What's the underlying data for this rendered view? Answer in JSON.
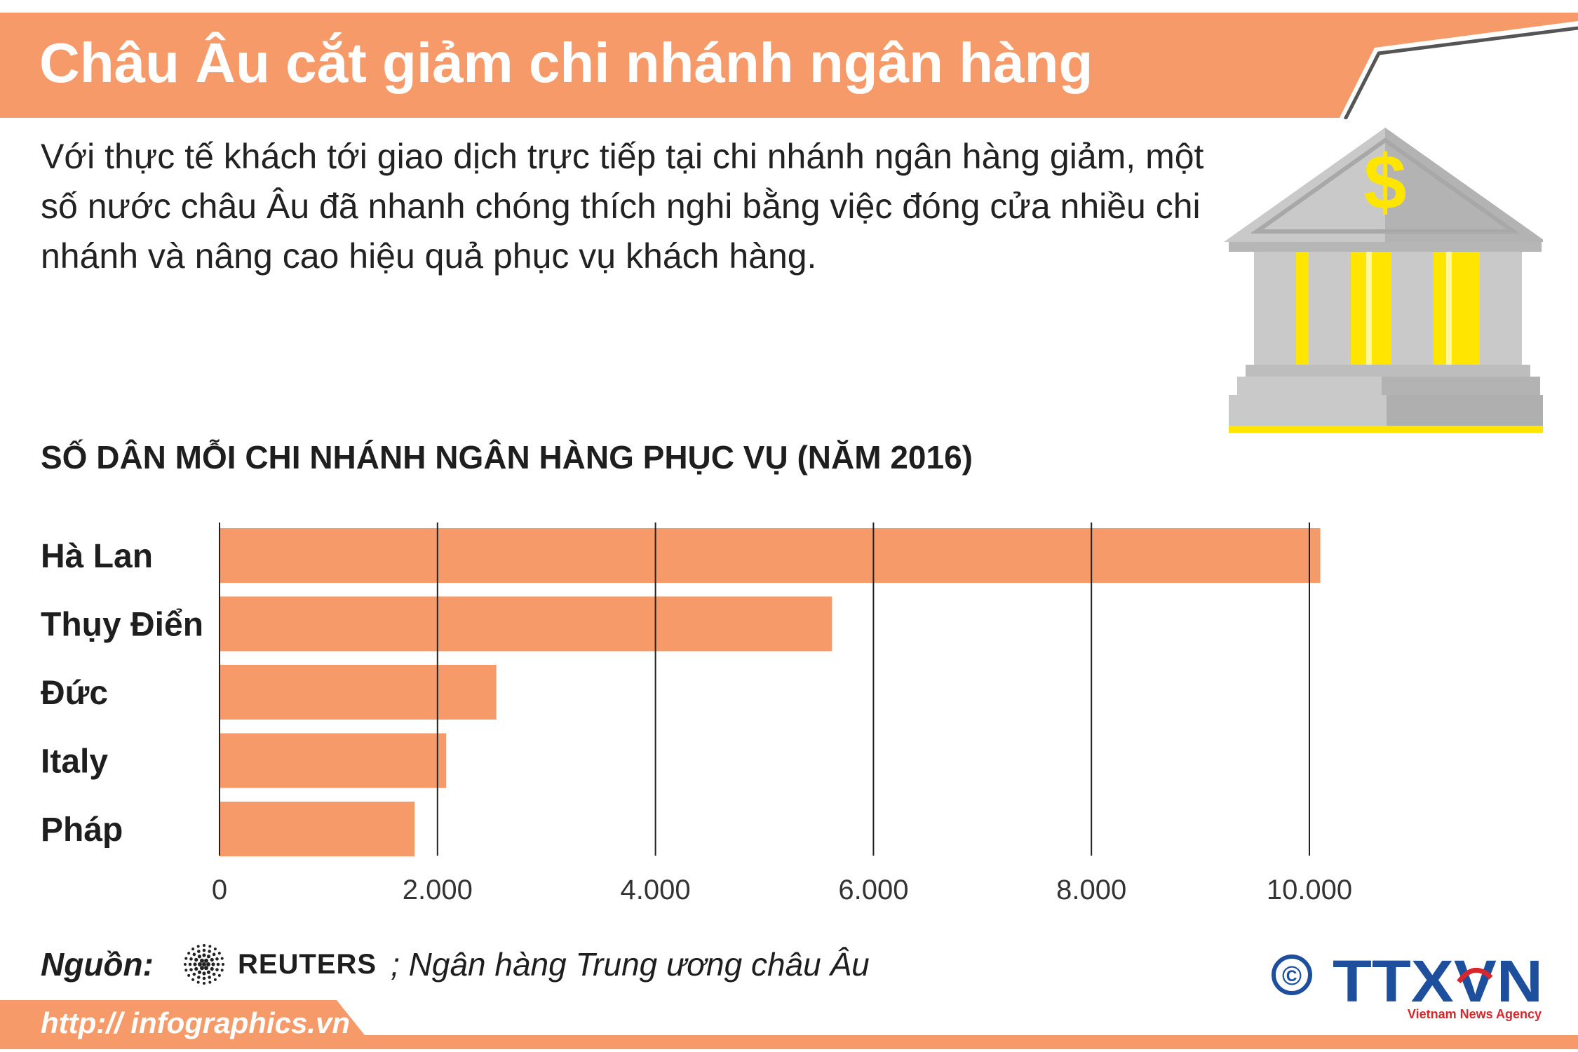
{
  "header": {
    "title": "Châu Âu cắt giảm chi nhánh ngân hàng"
  },
  "intro": {
    "text": "Với thực tế khách tới giao dịch trực tiếp tại chi nhánh ngân hàng giảm, một số nước châu Âu đã nhanh chóng thích nghi bằng việc đóng cửa nhiều chi nhánh và nâng cao hiệu quả phục vụ khách hàng."
  },
  "icon": {
    "name": "bank-building-icon",
    "symbol": "$"
  },
  "colors": {
    "accent": "#F79A69",
    "yellow": "#FFE500",
    "grey": "#C9C9C9",
    "dark_grey": "#A9A9A9",
    "logo_blue": "#1D4F9C",
    "logo_red": "#D7262C"
  },
  "chart_data": {
    "type": "bar",
    "orientation": "horizontal",
    "title": "SỐ DÂN MỖI CHI NHÁNH NGÂN HÀNG PHỤC VỤ (NĂM 2016)",
    "categories": [
      "Hà Lan",
      "Thụy Điển",
      "Đức",
      "Italy",
      "Pháp"
    ],
    "values": [
      10100,
      5620,
      2540,
      2080,
      1790
    ],
    "xlim": [
      0,
      10000
    ],
    "xticks": [
      0,
      2000,
      4000,
      6000,
      8000,
      10000
    ],
    "tick_labels": [
      "0",
      "2.000",
      "4.000",
      "6.000",
      "8.000",
      "10.000"
    ],
    "grid": true
  },
  "source": {
    "label": "Nguồn:",
    "reuters": "REUTERS",
    "rest": "; Ngân hàng Trung ương châu Âu"
  },
  "footer": {
    "url": "http:// infographics.vn"
  },
  "logo": {
    "copyright": "©",
    "name": "TTXVN",
    "tagline": "Vietnam News Agency"
  }
}
